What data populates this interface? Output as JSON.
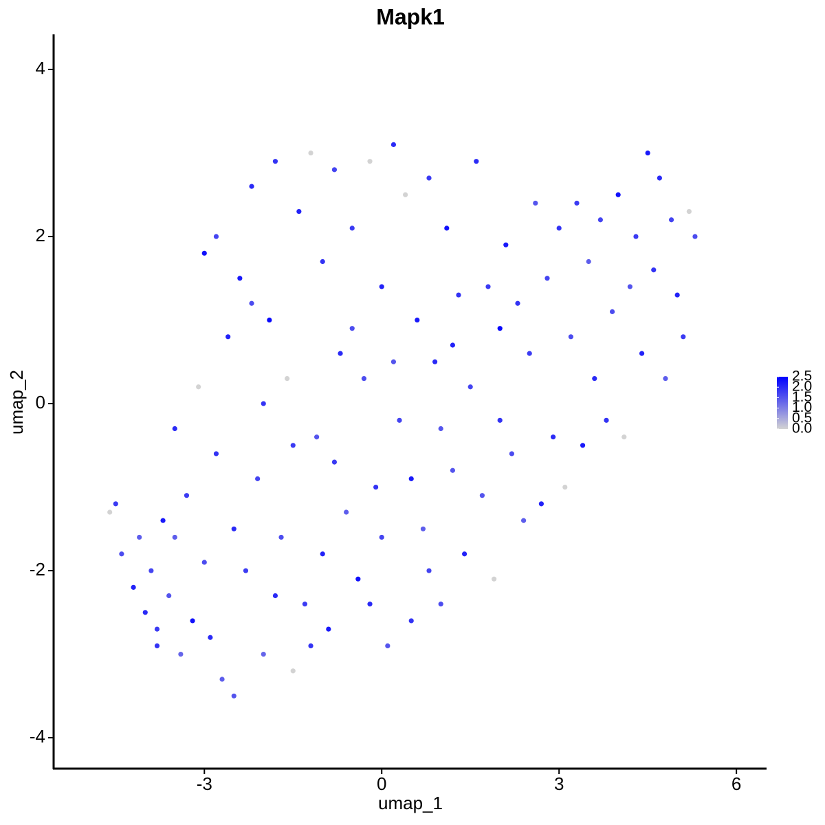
{
  "chart_data": {
    "type": "scatter",
    "title": "Mapk1",
    "x_label": "umap_1",
    "y_label": "umap_2",
    "xlim": [
      -5.55,
      6.51
    ],
    "ylim": [
      -4.37,
      4.42
    ],
    "xticks": [
      -3,
      0,
      3,
      6
    ],
    "yticks": [
      -4,
      -2,
      0,
      2,
      4
    ],
    "color_low": "#d3d3d3",
    "color_high": "#0000ff",
    "color_ticks": [
      {
        "value": 0,
        "label": "0.0"
      },
      0.5,
      {
        "value": 1,
        "label": "1.0"
      },
      1.5,
      {
        "value": 2,
        "label": "2.0"
      },
      2.5
    ],
    "x": [
      -4.6,
      -4.5,
      -4.4,
      -4.2,
      -4.1,
      -4.0,
      -3.9,
      -3.8,
      -3.7,
      -3.6,
      -3.5,
      -3.4,
      -3.3,
      -3.2,
      -3.1,
      -3.0,
      -2.9,
      -2.8,
      -2.7,
      -2.6,
      -2.5,
      -2.4,
      -2.3,
      -2.2,
      -2.1,
      -2.0,
      -1.9,
      -1.8,
      -1.7,
      -1.6,
      -1.5,
      -1.4,
      -1.3,
      -1.2,
      -1.1,
      -1.0,
      -0.9,
      -0.8,
      -0.7,
      -0.6,
      -0.5,
      -0.4,
      -0.3,
      -0.2,
      -0.1,
      0.0,
      0.1,
      0.2,
      0.3,
      0.4,
      0.5,
      0.6,
      0.7,
      0.8,
      0.9,
      1.0,
      1.1,
      1.2,
      1.3,
      1.4,
      1.5,
      1.6,
      1.7,
      1.8,
      1.9,
      2.0,
      2.1,
      2.2,
      2.3,
      2.4,
      2.5,
      2.6,
      2.7,
      2.8,
      2.9,
      3.0,
      3.1,
      3.2,
      3.3,
      3.4,
      3.5,
      3.6,
      3.7,
      3.8,
      3.9,
      4.0,
      4.1,
      4.2,
      4.3,
      4.4,
      4.5,
      4.6,
      4.7,
      4.8,
      4.9,
      5.0,
      5.1,
      5.2,
      5.3,
      -3.0,
      -2.0,
      -1.0,
      0.0,
      1.0,
      -2.5,
      -1.5,
      -0.5,
      0.5,
      -3.5,
      2.0,
      -2.8,
      -1.8,
      -0.8,
      0.2,
      1.2,
      -2.2,
      -1.2,
      -0.2,
      0.8,
      -3.8
    ],
    "values": [
      -1.3,
      -1.2,
      -1.8,
      -2.2,
      -1.6,
      -2.5,
      -2.0,
      -2.9,
      -1.4,
      -2.3,
      -0.3,
      -3.0,
      -1.1,
      -2.6,
      0.2,
      -1.9,
      -2.8,
      -0.6,
      -3.3,
      0.8,
      -3.5,
      1.5,
      -2.0,
      2.6,
      -0.9,
      -3.0,
      1.0,
      2.9,
      -1.6,
      0.3,
      -3.2,
      2.3,
      -2.4,
      3.0,
      -0.4,
      1.7,
      -2.7,
      2.8,
      0.6,
      -1.3,
      2.1,
      -2.1,
      0.3,
      2.9,
      -1.0,
      1.4,
      -2.9,
      3.1,
      -0.2,
      2.5,
      -2.6,
      1.0,
      -1.5,
      2.7,
      0.5,
      -2.4,
      2.1,
      -0.8,
      1.3,
      -1.8,
      0.2,
      2.9,
      -1.1,
      1.4,
      -2.1,
      0.9,
      1.9,
      -0.6,
      1.2,
      -1.4,
      0.6,
      2.4,
      -1.2,
      1.5,
      -0.4,
      2.1,
      -1.0,
      0.8,
      2.4,
      -0.5,
      1.7,
      0.3,
      2.2,
      -0.2,
      1.1,
      2.5,
      -0.4,
      1.4,
      2.0,
      0.6,
      3.0,
      1.6,
      2.7,
      0.3,
      2.2,
      1.3,
      0.8,
      2.3,
      2.0,
      1.8,
      0.0,
      -1.8,
      -1.6,
      -0.3,
      -1.5,
      -0.5,
      0.9,
      -0.9,
      -1.6,
      -0.2,
      2.0,
      -2.3,
      -0.7,
      0.5,
      0.7,
      1.2,
      -2.9,
      -2.4,
      -2.0,
      -2.7
    ],
    "color_values": [
      0,
      1.8,
      1.6,
      2.1,
      1.4,
      2.0,
      1.7,
      1.9,
      2.2,
      1.5,
      2.0,
      1.3,
      1.8,
      2.3,
      0,
      1.6,
      2.0,
      1.9,
      1.4,
      2.1,
      1.5,
      2.2,
      1.8,
      2.0,
      1.7,
      1.3,
      2.4,
      1.9,
      1.6,
      0,
      0,
      2.1,
      1.8,
      0,
      1.5,
      1.9,
      2.2,
      1.7,
      2.0,
      1.4,
      1.8,
      2.3,
      1.6,
      0,
      1.9,
      2.1,
      1.5,
      2.0,
      1.7,
      0,
      1.9,
      2.2,
      1.4,
      1.8,
      2.0,
      1.6,
      2.3,
      1.5,
      1.9,
      2.1,
      1.7,
      2.0,
      1.5,
      1.8,
      0,
      2.4,
      2.2,
      1.6,
      1.9,
      1.4,
      1.8,
      1.5,
      2.1,
      1.7,
      2.0,
      1.9,
      0,
      1.6,
      1.8,
      2.2,
      1.4,
      2.0,
      1.7,
      1.9,
      1.6,
      2.3,
      0,
      1.5,
      1.8,
      2.1,
      2.2,
      1.9,
      2.0,
      1.4,
      1.7,
      2.1,
      1.8,
      0,
      1.6,
      2.3,
      1.9,
      2.1,
      1.7,
      1.5,
      2.0,
      1.8,
      1.6,
      2.2,
      1.4,
      1.9,
      1.7,
      2.0,
      1.8,
      1.5,
      2.1,
      1.6,
      1.9,
      2.0,
      1.7,
      1.8
    ]
  }
}
